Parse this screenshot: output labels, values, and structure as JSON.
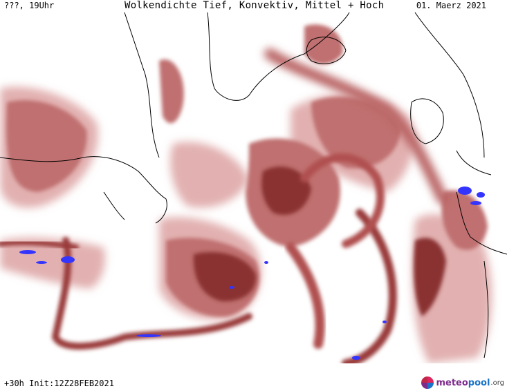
{
  "header": {
    "left_label": "???, 19Uhr",
    "title": "Wolkendichte  Tief, Konvektiv, Mittel + Hoch",
    "date": "01. Maerz 2021"
  },
  "footer": {
    "run_info": "+30h Init:12Z28FEB2021",
    "logo": {
      "word_a": "meteo",
      "word_b": "pool",
      "tld": ".org"
    }
  },
  "map": {
    "colors": {
      "cloud_light": "#e6b8b8",
      "cloud_mid": "#c47878",
      "cloud_dark": "#8e3434",
      "convective": "#3a3aff",
      "coast": "#000000"
    },
    "icons": [
      "meteopool-logo-icon"
    ]
  }
}
